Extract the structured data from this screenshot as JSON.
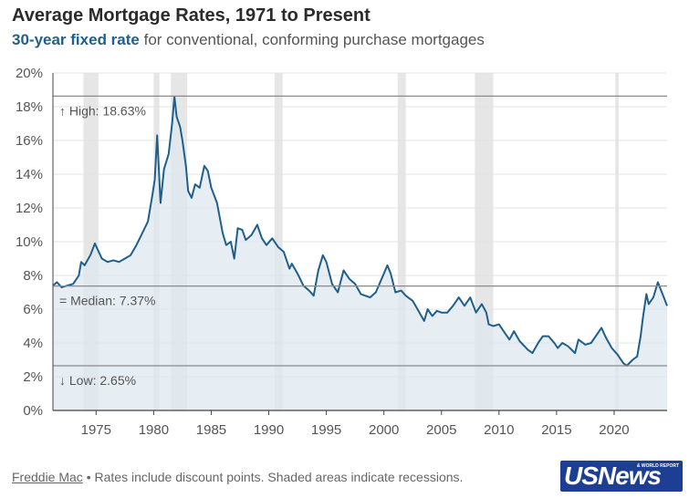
{
  "header": {
    "title": "Average Mortgage Rates, 1971 to Present",
    "subtitle_accent": "30-year fixed rate",
    "subtitle_rest": " for conventional, conforming purchase mortgages"
  },
  "footer": {
    "source": "Freddie Mac",
    "note": " • Rates include discount points. Shaded areas indicate recessions."
  },
  "logo": {
    "main": "USNews",
    "sub": "& WORLD REPORT"
  },
  "colors": {
    "line": "#1f5f8b",
    "area": "#dde7ef",
    "recession": "#e6e6e6",
    "reference": "#8a8a8a"
  },
  "chart_data": {
    "type": "area",
    "xlim": [
      1971.25,
      2024.6
    ],
    "ylim": [
      0,
      20
    ],
    "x_ticks": [
      1975,
      1980,
      1985,
      1990,
      1995,
      2000,
      2005,
      2010,
      2015,
      2020
    ],
    "y_ticks": [
      {
        "value": 0,
        "label": "0%"
      },
      {
        "value": 2,
        "label": "2%"
      },
      {
        "value": 4,
        "label": "4%"
      },
      {
        "value": 6,
        "label": "6%"
      },
      {
        "value": 8,
        "label": "8%"
      },
      {
        "value": 10,
        "label": "10%"
      },
      {
        "value": 12,
        "label": "12%"
      },
      {
        "value": 14,
        "label": "14%"
      },
      {
        "value": 16,
        "label": "16%"
      },
      {
        "value": 18,
        "label": "18%"
      },
      {
        "value": 20,
        "label": "20%"
      }
    ],
    "grid": true,
    "recessions": [
      [
        1973.9,
        1975.2
      ],
      [
        1980.0,
        1980.5
      ],
      [
        1981.5,
        1982.9
      ],
      [
        1990.5,
        1991.2
      ],
      [
        2001.2,
        2001.9
      ],
      [
        2007.9,
        2009.5
      ],
      [
        2020.1,
        2020.4
      ]
    ],
    "reference_lines": [
      {
        "value": 18.63,
        "label": "↑ High: 18.63%"
      },
      {
        "value": 7.37,
        "label": "= Median: 7.37%"
      },
      {
        "value": 2.65,
        "label": "↓ Low: 2.65%"
      }
    ],
    "series": [
      {
        "x": [
          1971.25,
          1971.6,
          1972.0,
          1972.5,
          1973.0,
          1973.5,
          1973.7,
          1974.0,
          1974.5,
          1974.9,
          1975.5,
          1976.0,
          1976.5,
          1977.0,
          1977.5,
          1978.0,
          1978.5,
          1979.0,
          1979.5,
          1979.9,
          1980.1,
          1980.3,
          1980.6,
          1980.9,
          1981.3,
          1981.6,
          1981.8,
          1982.0,
          1982.3,
          1982.5,
          1982.8,
          1983.0,
          1983.3,
          1983.6,
          1984.0,
          1984.4,
          1984.7,
          1985.0,
          1985.5,
          1986.0,
          1986.3,
          1986.7,
          1987.0,
          1987.3,
          1987.7,
          1988.0,
          1988.5,
          1989.0,
          1989.4,
          1989.8,
          1990.3,
          1990.8,
          1991.3,
          1991.8,
          1992.0,
          1992.5,
          1993.0,
          1993.5,
          1993.9,
          1994.3,
          1994.7,
          1995.0,
          1995.5,
          1996.0,
          1996.5,
          1997.0,
          1997.5,
          1998.0,
          1998.8,
          1999.3,
          1999.8,
          2000.3,
          2000.6,
          2001.0,
          2001.5,
          2001.9,
          2002.5,
          2003.0,
          2003.5,
          2003.8,
          2004.2,
          2004.6,
          2005.0,
          2005.5,
          2006.0,
          2006.5,
          2007.0,
          2007.5,
          2008.0,
          2008.5,
          2008.9,
          2009.1,
          2009.5,
          2010.0,
          2010.5,
          2010.9,
          2011.3,
          2011.8,
          2012.5,
          2012.9,
          2013.4,
          2013.8,
          2014.3,
          2014.8,
          2015.1,
          2015.5,
          2016.0,
          2016.6,
          2016.9,
          2017.5,
          2018.0,
          2018.9,
          2019.3,
          2019.8,
          2020.3,
          2020.8,
          2021.1,
          2021.6,
          2022.0,
          2022.3,
          2022.5,
          2022.8,
          2023.0,
          2023.4,
          2023.8,
          2024.2,
          2024.6
        ],
        "values": [
          7.4,
          7.6,
          7.3,
          7.4,
          7.5,
          8.0,
          8.8,
          8.6,
          9.2,
          9.9,
          9.0,
          8.8,
          8.9,
          8.8,
          9.0,
          9.2,
          9.8,
          10.5,
          11.2,
          12.8,
          13.7,
          16.3,
          12.3,
          14.3,
          15.2,
          17.0,
          18.6,
          17.4,
          16.8,
          16.0,
          14.5,
          13.0,
          12.6,
          13.4,
          13.2,
          14.5,
          14.2,
          13.2,
          12.3,
          10.5,
          9.8,
          10.0,
          9.0,
          10.8,
          10.7,
          10.1,
          10.4,
          11.0,
          10.2,
          9.8,
          10.2,
          9.7,
          9.4,
          8.4,
          8.7,
          8.1,
          7.4,
          7.1,
          6.8,
          8.3,
          9.2,
          8.8,
          7.5,
          7.0,
          8.3,
          7.8,
          7.5,
          6.9,
          6.7,
          7.0,
          7.8,
          8.6,
          8.1,
          7.0,
          7.1,
          6.8,
          6.5,
          5.9,
          5.3,
          6.0,
          5.6,
          5.9,
          5.8,
          5.8,
          6.2,
          6.7,
          6.2,
          6.7,
          5.8,
          6.3,
          5.8,
          5.1,
          5.0,
          5.1,
          4.6,
          4.2,
          4.7,
          4.1,
          3.6,
          3.4,
          4.0,
          4.4,
          4.4,
          4.0,
          3.7,
          4.0,
          3.8,
          3.4,
          4.2,
          3.9,
          4.0,
          4.9,
          4.3,
          3.7,
          3.3,
          2.8,
          2.65,
          3.0,
          3.2,
          4.4,
          5.5,
          6.9,
          6.3,
          6.7,
          7.6,
          6.9,
          6.2
        ]
      }
    ]
  }
}
